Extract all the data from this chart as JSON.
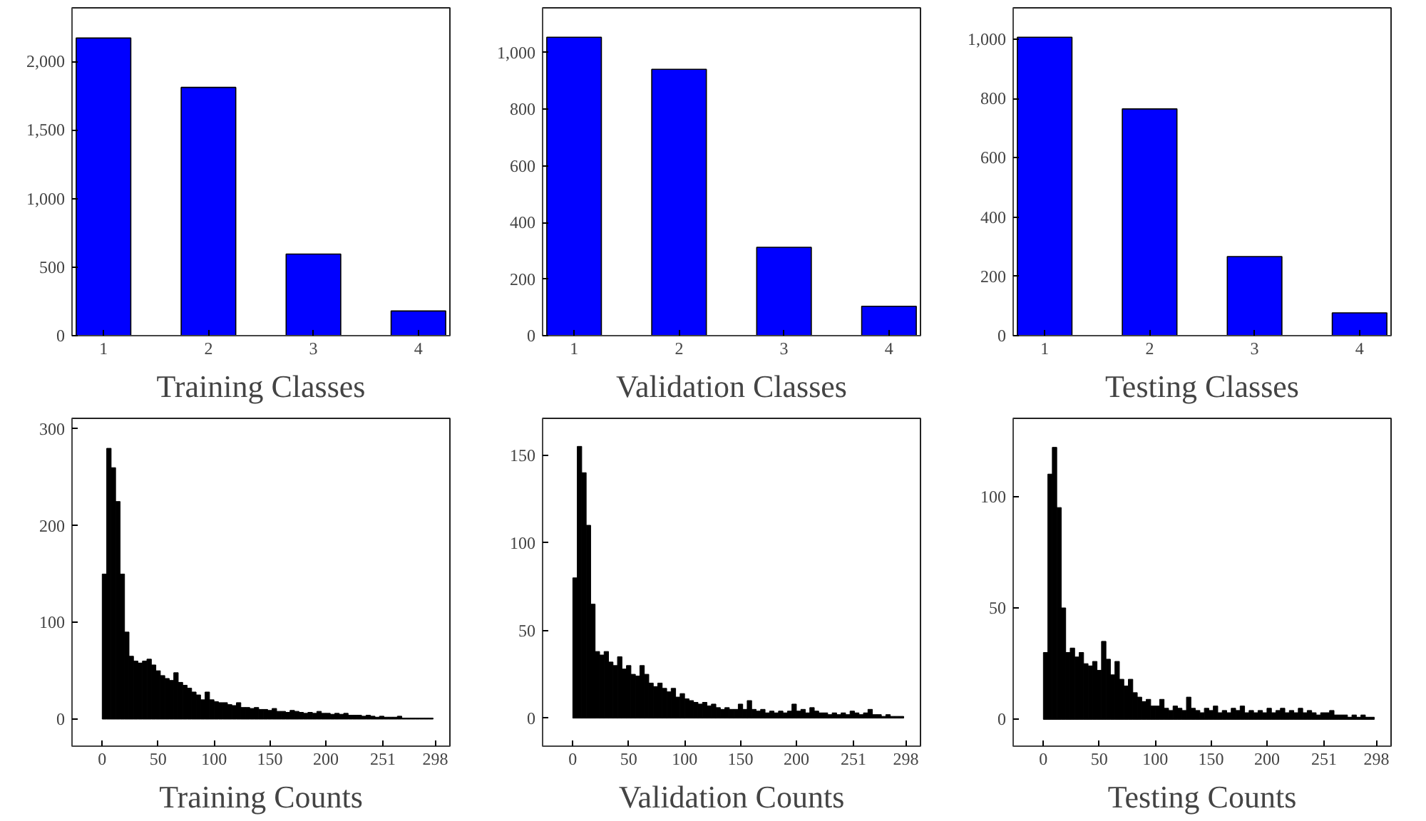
{
  "chart_data": [
    {
      "type": "bar",
      "title": "Training Classes",
      "categories": [
        "1",
        "2",
        "3",
        "4"
      ],
      "values": [
        2170,
        1810,
        595,
        180
      ],
      "color": "#0000ff",
      "ylim": [
        0,
        2390
      ],
      "yticks": [
        0,
        500,
        {
          "value": 1000,
          "label": "1,000"
        },
        {
          "value": 1500,
          "label": "1,500"
        },
        {
          "value": 2000,
          "label": "2,000"
        }
      ]
    },
    {
      "type": "bar",
      "title": "Validation Classes",
      "categories": [
        "1",
        "2",
        "3",
        "4"
      ],
      "values": [
        1054,
        941,
        312,
        104
      ],
      "color": "#0000ff",
      "ylim": [
        0,
        1158
      ],
      "yticks": [
        0,
        200,
        400,
        600,
        800,
        {
          "value": 1000,
          "label": "1,000"
        }
      ]
    },
    {
      "type": "bar",
      "title": "Testing Classes",
      "categories": [
        "1",
        "2",
        "3",
        "4"
      ],
      "values": [
        1007,
        765,
        267,
        77
      ],
      "color": "#0000ff",
      "ylim": [
        0,
        1106
      ],
      "yticks": [
        0,
        200,
        400,
        600,
        800,
        {
          "value": 1000,
          "label": "1,000"
        }
      ]
    },
    {
      "type": "histogram",
      "title": "Training Counts",
      "color": "#000000",
      "bins": [
        0,
        4,
        8,
        12,
        16,
        20,
        24,
        28,
        32,
        36,
        40,
        44,
        48,
        52,
        56,
        60,
        64,
        68,
        72,
        76,
        80,
        84,
        88,
        92,
        96,
        100,
        104,
        108,
        112,
        116,
        120,
        124,
        128,
        132,
        136,
        140,
        144,
        148,
        152,
        156,
        160,
        164,
        168,
        172,
        176,
        180,
        184,
        188,
        192,
        196,
        200,
        204,
        208,
        212,
        216,
        220,
        224,
        228,
        232,
        236,
        240,
        244,
        248,
        252,
        256,
        260,
        264,
        268,
        272,
        276,
        280,
        284,
        288,
        292,
        296
      ],
      "values": [
        150,
        280,
        260,
        225,
        150,
        90,
        65,
        60,
        58,
        60,
        62,
        56,
        50,
        45,
        42,
        40,
        48,
        38,
        35,
        32,
        28,
        25,
        20,
        28,
        20,
        18,
        17,
        17,
        15,
        14,
        17,
        12,
        12,
        11,
        12,
        10,
        10,
        9,
        11,
        8,
        8,
        7,
        9,
        8,
        7,
        6,
        7,
        6,
        8,
        6,
        6,
        5,
        6,
        5,
        6,
        4,
        4,
        4,
        3,
        4,
        3,
        2,
        3,
        2,
        2,
        2,
        3,
        1,
        1,
        1,
        1,
        1,
        1,
        1
      ],
      "xlim": [
        -27,
        311
      ],
      "xticks": [
        0,
        50,
        100,
        150,
        200,
        251,
        298
      ],
      "ylim": [
        -28,
        311
      ],
      "yticks": [
        0,
        100,
        200,
        300
      ]
    },
    {
      "type": "histogram",
      "title": "Validation Counts",
      "color": "#000000",
      "bins": [
        0,
        4,
        8,
        12,
        16,
        20,
        24,
        28,
        32,
        36,
        40,
        44,
        48,
        52,
        56,
        60,
        64,
        68,
        72,
        76,
        80,
        84,
        88,
        92,
        96,
        100,
        104,
        108,
        112,
        116,
        120,
        124,
        128,
        132,
        136,
        140,
        144,
        148,
        152,
        156,
        160,
        164,
        168,
        172,
        176,
        180,
        184,
        188,
        192,
        196,
        200,
        204,
        208,
        212,
        216,
        220,
        224,
        228,
        232,
        236,
        240,
        244,
        248,
        252,
        256,
        260,
        264,
        268,
        272,
        276,
        280,
        284,
        288,
        292,
        296
      ],
      "values": [
        80,
        155,
        140,
        110,
        65,
        38,
        36,
        38,
        32,
        30,
        35,
        28,
        30,
        25,
        24,
        30,
        25,
        20,
        18,
        20,
        17,
        15,
        17,
        12,
        14,
        11,
        10,
        9,
        8,
        9,
        7,
        8,
        6,
        5,
        6,
        5,
        5,
        8,
        5,
        10,
        5,
        4,
        5,
        3,
        4,
        3,
        4,
        3,
        4,
        8,
        4,
        5,
        3,
        6,
        4,
        3,
        3,
        2,
        3,
        2,
        3,
        2,
        4,
        3,
        2,
        3,
        5,
        2,
        2,
        1,
        2,
        1,
        1,
        1
      ],
      "xlim": [
        -27,
        311
      ],
      "xticks": [
        0,
        50,
        100,
        150,
        200,
        251,
        298
      ],
      "ylim": [
        -16,
        171
      ],
      "yticks": [
        0,
        50,
        100,
        150
      ]
    },
    {
      "type": "histogram",
      "title": "Testing Counts",
      "color": "#000000",
      "bins": [
        0,
        4,
        8,
        12,
        16,
        20,
        24,
        28,
        32,
        36,
        40,
        44,
        48,
        52,
        56,
        60,
        64,
        68,
        72,
        76,
        80,
        84,
        88,
        92,
        96,
        100,
        104,
        108,
        112,
        116,
        120,
        124,
        128,
        132,
        136,
        140,
        144,
        148,
        152,
        156,
        160,
        164,
        168,
        172,
        176,
        180,
        184,
        188,
        192,
        196,
        200,
        204,
        208,
        212,
        216,
        220,
        224,
        228,
        232,
        236,
        240,
        244,
        248,
        252,
        256,
        260,
        264,
        268,
        272,
        276,
        280,
        284,
        288,
        292,
        296
      ],
      "values": [
        30,
        110,
        122,
        95,
        50,
        30,
        32,
        28,
        30,
        25,
        24,
        26,
        22,
        35,
        27,
        20,
        26,
        18,
        15,
        18,
        12,
        10,
        8,
        9,
        6,
        6,
        9,
        5,
        4,
        6,
        5,
        4,
        10,
        5,
        4,
        3,
        5,
        4,
        6,
        3,
        4,
        3,
        5,
        4,
        6,
        3,
        4,
        3,
        4,
        3,
        5,
        3,
        4,
        5,
        3,
        4,
        3,
        5,
        3,
        4,
        3,
        2,
        3,
        3,
        4,
        2,
        2,
        2,
        1,
        2,
        1,
        2,
        1,
        1
      ],
      "xlim": [
        -27,
        311
      ],
      "xticks": [
        0,
        50,
        100,
        150,
        200,
        251,
        298
      ],
      "ylim": [
        -12,
        135
      ],
      "yticks": [
        0,
        50,
        100
      ]
    }
  ]
}
